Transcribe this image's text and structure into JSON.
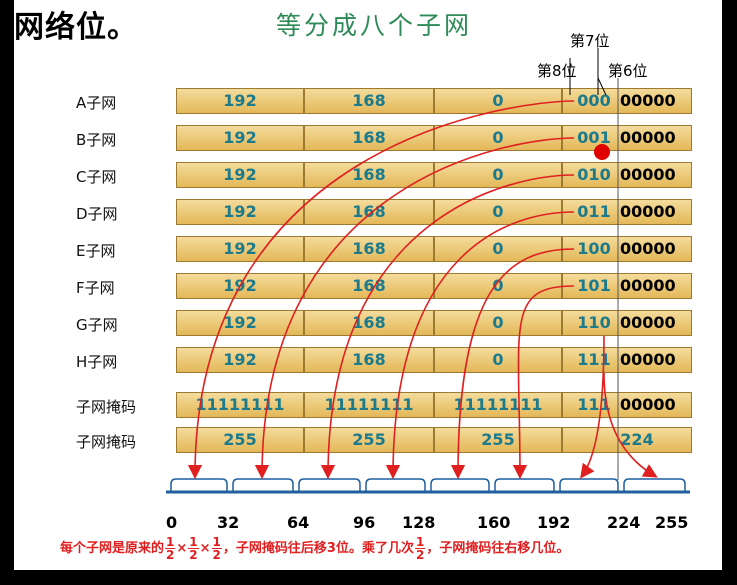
{
  "heading": "网络位。",
  "title": "等分成八个子网",
  "bit_labels": {
    "bit7": "第7位",
    "bit8": "第8位",
    "bit6": "第6位"
  },
  "rows": [
    {
      "label": "A子网",
      "o1": "192",
      "o2": "168",
      "o3": "0",
      "subnet_bits": "000",
      "host_bits": "00000"
    },
    {
      "label": "B子网",
      "o1": "192",
      "o2": "168",
      "o3": "0",
      "subnet_bits": "001",
      "host_bits": "00000"
    },
    {
      "label": "C子网",
      "o1": "192",
      "o2": "168",
      "o3": "0",
      "subnet_bits": "010",
      "host_bits": "00000"
    },
    {
      "label": "D子网",
      "o1": "192",
      "o2": "168",
      "o3": "0",
      "subnet_bits": "011",
      "host_bits": "00000"
    },
    {
      "label": "E子网",
      "o1": "192",
      "o2": "168",
      "o3": "0",
      "subnet_bits": "100",
      "host_bits": "00000"
    },
    {
      "label": "F子网",
      "o1": "192",
      "o2": "168",
      "o3": "0",
      "subnet_bits": "101",
      "host_bits": "00000"
    },
    {
      "label": "G子网",
      "o1": "192",
      "o2": "168",
      "o3": "0",
      "subnet_bits": "110",
      "host_bits": "00000"
    },
    {
      "label": "H子网",
      "o1": "192",
      "o2": "168",
      "o3": "0",
      "subnet_bits": "111",
      "host_bits": "00000"
    }
  ],
  "mask_binary": {
    "label": "子网掩码",
    "o1": "11111111",
    "o2": "11111111",
    "o3": "11111111",
    "subnet_bits": "111",
    "host_bits": "00000"
  },
  "mask_decimal": {
    "label": "子网掩码",
    "o1": "255",
    "o2": "255",
    "o3": "255",
    "o4": "224"
  },
  "ticks": [
    "0",
    "32",
    "64",
    "96",
    "128",
    "160",
    "192",
    "224",
    "255"
  ],
  "note": {
    "part1": "每个子网是原来的",
    "frac_num": "1",
    "frac_den": "2",
    "times": "×",
    "part2": "，子网掩码往后移3位。乘了几次",
    "part3": "，子网掩码往右移几位。"
  },
  "colors": {
    "cell_top": "#f4dc9c",
    "cell_bottom": "#e3b858",
    "value": "#1b7a8c",
    "title": "#2e8b57",
    "arrow": "#e02020",
    "axis": "#1f5f9f"
  }
}
